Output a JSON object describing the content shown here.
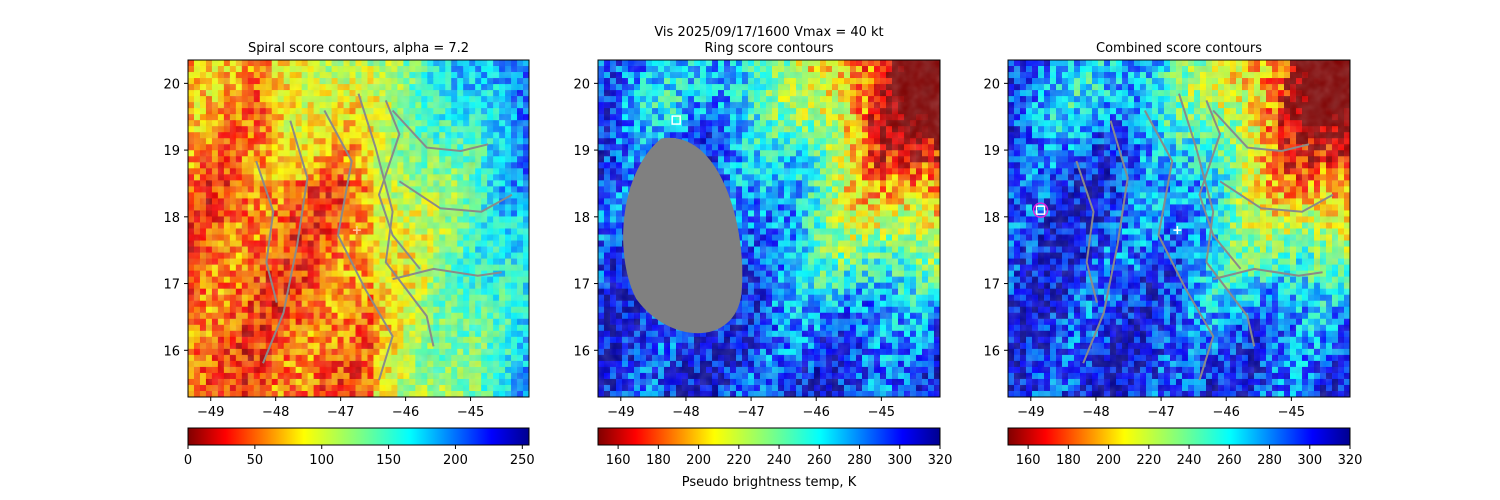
{
  "suptitle": {
    "line1": "Vis  2025/09/17/1600    Vmax = 40 kt",
    "line2": "Ring score contours"
  },
  "colors": {
    "contour": "#8a8a8a",
    "mask": "#808080",
    "marker_white": "#ffffff",
    "marker_magenta": "#e020e0"
  },
  "chart_data": [
    {
      "type": "heatmap",
      "title": "Spiral score contours, alpha =  7.2",
      "xlim": [
        -49.35,
        -44.1
      ],
      "ylim": [
        15.3,
        20.35
      ],
      "xticks": [
        -49,
        -48,
        -47,
        -46,
        -45
      ],
      "xtick_labels": [
        "−49",
        "−48",
        "−47",
        "−46",
        "−45"
      ],
      "yticks": [
        16,
        17,
        18,
        19,
        20
      ],
      "ytick_labels": [
        "16",
        "17",
        "18",
        "19",
        "20"
      ],
      "colormap": "jet_r",
      "colorbar": {
        "range": [
          0,
          255
        ],
        "ticks": [
          0,
          50,
          100,
          150,
          200,
          250
        ],
        "tick_labels": [
          "0",
          "50",
          "100",
          "150",
          "200",
          "250"
        ],
        "label": ""
      },
      "markers": [
        {
          "kind": "plus",
          "lon": -46.75,
          "lat": 17.8,
          "color": "#ffcc99"
        }
      ]
    },
    {
      "type": "heatmap",
      "title": "Ring score contours",
      "xlim": [
        -49.35,
        -44.1
      ],
      "ylim": [
        15.3,
        20.35
      ],
      "xticks": [
        -49,
        -48,
        -47,
        -46,
        -45
      ],
      "xtick_labels": [
        "−49",
        "−48",
        "−47",
        "−46",
        "−45"
      ],
      "yticks": [
        16,
        17,
        18,
        19,
        20
      ],
      "ytick_labels": [
        "16",
        "17",
        "18",
        "19",
        "20"
      ],
      "colormap": "jet_r",
      "colorbar": {
        "range": [
          150,
          320
        ],
        "ticks": [
          160,
          180,
          200,
          220,
          240,
          260,
          280,
          300,
          320
        ],
        "tick_labels": [
          "160",
          "180",
          "200",
          "220",
          "240",
          "260",
          "280",
          "300",
          "320"
        ],
        "label": "Pseudo brightness temp, K"
      },
      "masked_region": {
        "center_lon": -48.05,
        "center_lat": 17.7,
        "lon_halfwidth": 0.95,
        "lat_halfheight": 1.55
      },
      "markers": [
        {
          "kind": "square",
          "lon": -48.15,
          "lat": 19.45,
          "color": "#ffffff"
        }
      ]
    },
    {
      "type": "heatmap",
      "title": "Combined score contours",
      "xlim": [
        -49.35,
        -44.1
      ],
      "ylim": [
        15.3,
        20.35
      ],
      "xticks": [
        -49,
        -48,
        -47,
        -46,
        -45
      ],
      "xtick_labels": [
        "−49",
        "−48",
        "−47",
        "−46",
        "−45"
      ],
      "yticks": [
        16,
        17,
        18,
        19,
        20
      ],
      "ytick_labels": [
        "16",
        "17",
        "18",
        "19",
        "20"
      ],
      "colormap": "jet_r",
      "colorbar": {
        "range": [
          150,
          320
        ],
        "ticks": [
          160,
          180,
          200,
          220,
          240,
          260,
          280,
          300,
          320
        ],
        "tick_labels": [
          "160",
          "180",
          "200",
          "220",
          "240",
          "260",
          "280",
          "300",
          "320"
        ],
        "label": ""
      },
      "markers": [
        {
          "kind": "plus",
          "lon": -46.75,
          "lat": 17.8,
          "color": "#ffffff"
        },
        {
          "kind": "square",
          "lon": -48.85,
          "lat": 18.1,
          "color": "#ffffff"
        },
        {
          "kind": "circle",
          "lon": -48.85,
          "lat": 18.1,
          "color": "#e020e0"
        }
      ]
    }
  ]
}
